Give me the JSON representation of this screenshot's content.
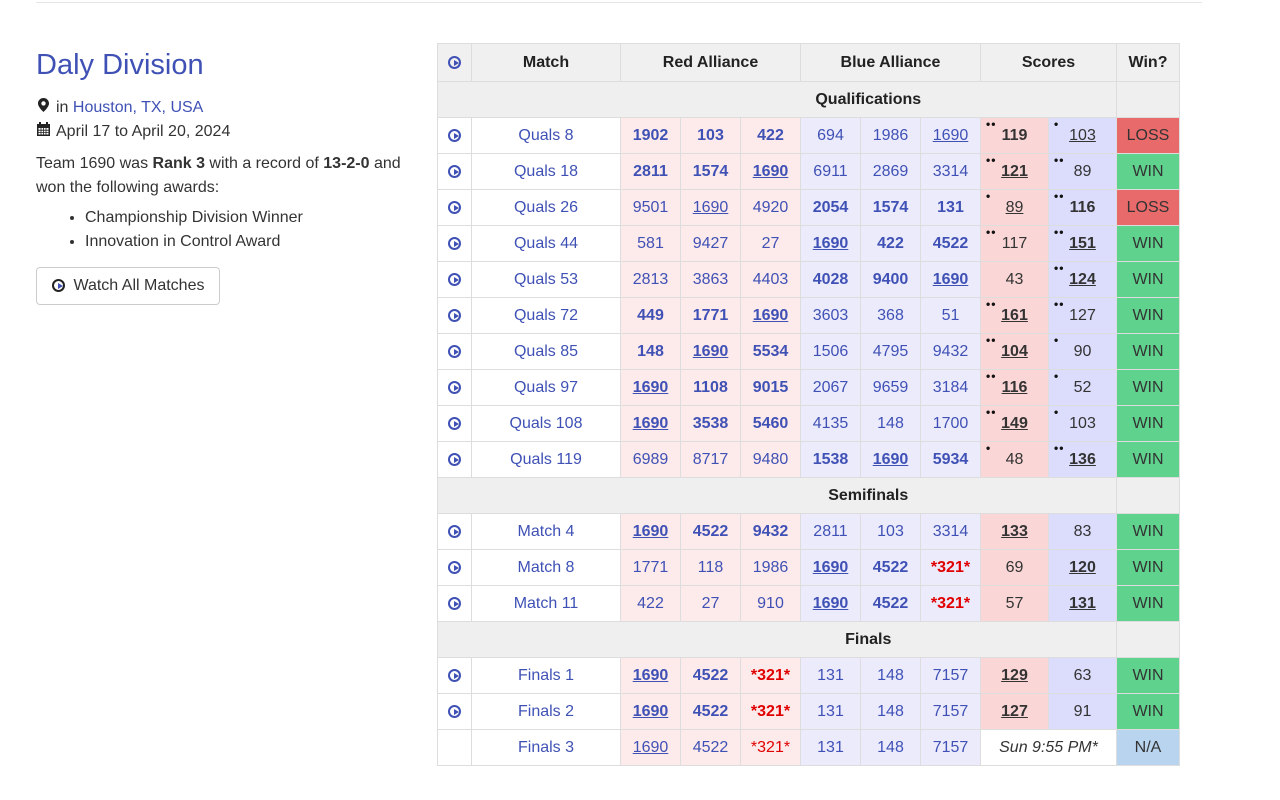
{
  "event": {
    "title": "Daly Division",
    "location_prefix": "in",
    "location": "Houston, TX, USA",
    "dates": "April 17 to April 20, 2024",
    "summary_1": "Team 1690 was ",
    "rank": "Rank 3",
    "summary_2": " with a record of ",
    "record": "13-2-0",
    "summary_3": " and won the following awards:",
    "awards": [
      "Championship Division Winner",
      "Innovation in Control Award"
    ],
    "watch_button": "Watch All Matches"
  },
  "table": {
    "headers": {
      "match": "Match",
      "red": "Red Alliance",
      "blue": "Blue Alliance",
      "scores": "Scores",
      "win": "Win?"
    },
    "sections": [
      {
        "name": "Qualifications",
        "matches": [
          {
            "label": "Quals 8",
            "red": [
              "1902",
              "103",
              "422"
            ],
            "blue": [
              "694",
              "1986",
              "1690"
            ],
            "red_score": "119",
            "blue_score": "103",
            "result": "LOSS",
            "red_rp": "••",
            "blue_rp": "•"
          },
          {
            "label": "Quals 18",
            "red": [
              "2811",
              "1574",
              "1690"
            ],
            "blue": [
              "6911",
              "2869",
              "3314"
            ],
            "red_score": "121",
            "blue_score": "89",
            "result": "WIN",
            "red_rp": "••",
            "blue_rp": "••"
          },
          {
            "label": "Quals 26",
            "red": [
              "9501",
              "1690",
              "4920"
            ],
            "blue": [
              "2054",
              "1574",
              "131"
            ],
            "red_score": "89",
            "blue_score": "116",
            "result": "LOSS",
            "red_rp": "•",
            "blue_rp": "••"
          },
          {
            "label": "Quals 44",
            "red": [
              "581",
              "9427",
              "27"
            ],
            "blue": [
              "1690",
              "422",
              "4522"
            ],
            "red_score": "117",
            "blue_score": "151",
            "result": "WIN",
            "red_rp": "••",
            "blue_rp": "••"
          },
          {
            "label": "Quals 53",
            "red": [
              "2813",
              "3863",
              "4403"
            ],
            "blue": [
              "4028",
              "9400",
              "1690"
            ],
            "red_score": "43",
            "blue_score": "124",
            "result": "WIN",
            "red_rp": "",
            "blue_rp": "••"
          },
          {
            "label": "Quals 72",
            "red": [
              "449",
              "1771",
              "1690"
            ],
            "blue": [
              "3603",
              "368",
              "51"
            ],
            "red_score": "161",
            "blue_score": "127",
            "result": "WIN",
            "red_rp": "••",
            "blue_rp": "••"
          },
          {
            "label": "Quals 85",
            "red": [
              "148",
              "1690",
              "5534"
            ],
            "blue": [
              "1506",
              "4795",
              "9432"
            ],
            "red_score": "104",
            "blue_score": "90",
            "result": "WIN",
            "red_rp": "••",
            "blue_rp": "•"
          },
          {
            "label": "Quals 97",
            "red": [
              "1690",
              "1108",
              "9015"
            ],
            "blue": [
              "2067",
              "9659",
              "3184"
            ],
            "red_score": "116",
            "blue_score": "52",
            "result": "WIN",
            "red_rp": "••",
            "blue_rp": "•"
          },
          {
            "label": "Quals 108",
            "red": [
              "1690",
              "3538",
              "5460"
            ],
            "blue": [
              "4135",
              "148",
              "1700"
            ],
            "red_score": "149",
            "blue_score": "103",
            "result": "WIN",
            "red_rp": "••",
            "blue_rp": "•"
          },
          {
            "label": "Quals 119",
            "red": [
              "6989",
              "8717",
              "9480"
            ],
            "blue": [
              "1538",
              "1690",
              "5934"
            ],
            "red_score": "48",
            "blue_score": "136",
            "result": "WIN",
            "red_rp": "•",
            "blue_rp": "••"
          }
        ]
      },
      {
        "name": "Semifinals",
        "matches": [
          {
            "label": "Match 4",
            "red": [
              "1690",
              "4522",
              "9432"
            ],
            "blue": [
              "2811",
              "103",
              "3314"
            ],
            "red_score": "133",
            "blue_score": "83",
            "result": "WIN",
            "red_rp": "",
            "blue_rp": ""
          },
          {
            "label": "Match 8",
            "red": [
              "1771",
              "118",
              "1986"
            ],
            "blue": [
              "1690",
              "4522",
              "*321*"
            ],
            "red_score": "69",
            "blue_score": "120",
            "result": "WIN",
            "red_rp": "",
            "blue_rp": ""
          },
          {
            "label": "Match 11",
            "red": [
              "422",
              "27",
              "910"
            ],
            "blue": [
              "1690",
              "4522",
              "*321*"
            ],
            "red_score": "57",
            "blue_score": "131",
            "result": "WIN",
            "red_rp": "",
            "blue_rp": ""
          }
        ]
      },
      {
        "name": "Finals",
        "matches": [
          {
            "label": "Finals 1",
            "red": [
              "1690",
              "4522",
              "*321*"
            ],
            "blue": [
              "131",
              "148",
              "7157"
            ],
            "red_score": "129",
            "blue_score": "63",
            "result": "WIN",
            "red_rp": "",
            "blue_rp": ""
          },
          {
            "label": "Finals 2",
            "red": [
              "1690",
              "4522",
              "*321*"
            ],
            "blue": [
              "131",
              "148",
              "7157"
            ],
            "red_score": "127",
            "blue_score": "91",
            "result": "WIN",
            "red_rp": "",
            "blue_rp": ""
          },
          {
            "label": "Finals 3",
            "red": [
              "1690",
              "4522",
              "*321*"
            ],
            "blue": [
              "131",
              "148",
              "7157"
            ],
            "red_score": "",
            "blue_score": "",
            "scheduled": "Sun 9:55 PM*",
            "result": "N/A",
            "red_rp": "",
            "blue_rp": "",
            "no_video": true
          }
        ]
      }
    ]
  },
  "colors": {
    "link": "#3f51b5",
    "red_cell": "#fdeaea",
    "blue_cell": "#ecebfc",
    "red_score": "#fbd6d6",
    "blue_score": "#dcdcfc",
    "win": "#5fd38d",
    "loss": "#e86a6a",
    "na": "#b8d4ee",
    "surrogate": "#e00000"
  }
}
